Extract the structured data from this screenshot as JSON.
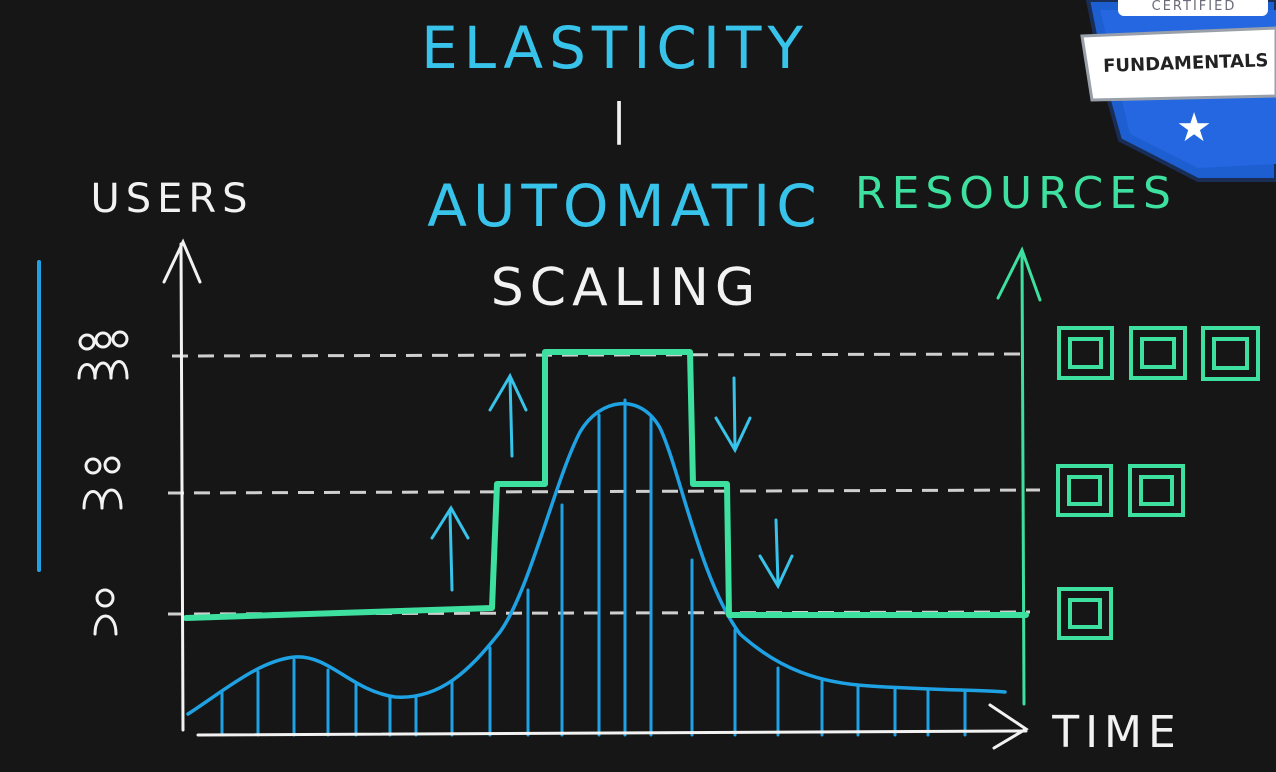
{
  "title": {
    "line1": "ELASTICITY",
    "separator": "|",
    "line2": "AUTOMATIC",
    "line3": "SCALING"
  },
  "labels": {
    "users": "USERS",
    "resources": "RESOURCES",
    "time": "TIME"
  },
  "badge": {
    "top_text": "CERTIFIED",
    "main_text": "FUNDAMENTALS"
  },
  "colors": {
    "background": "#161616",
    "title_blue": "#38c3ea",
    "user_curve_blue": "#1fa2e4",
    "resources_green": "#3ee0a0",
    "axes_white": "#f2f2f2",
    "badge_blue": "#1d5fd1"
  },
  "user_levels": [
    {
      "count": 1,
      "icon": "single-user-icon",
      "resources": 1
    },
    {
      "count": 2,
      "icon": "two-users-icon",
      "resources": 2
    },
    {
      "count": 3,
      "icon": "three-users-icon",
      "resources": 3
    }
  ]
}
